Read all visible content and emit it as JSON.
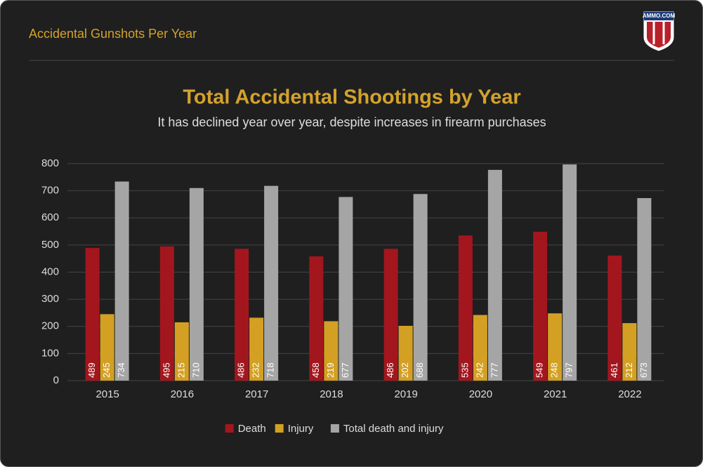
{
  "header": {
    "title": "Accidental Gunshots Per Year",
    "logo": "AMMO.COM"
  },
  "chart_data": {
    "type": "bar",
    "title": "Total Accidental Shootings by Year",
    "subtitle": "It has declined year over year, despite increases in firearm purchases",
    "categories": [
      "2015",
      "2016",
      "2017",
      "2018",
      "2019",
      "2020",
      "2021",
      "2022"
    ],
    "series": [
      {
        "name": "Death",
        "color": "#a3161e",
        "values": [
          489,
          495,
          486,
          458,
          486,
          535,
          549,
          461
        ]
      },
      {
        "name": "Injury",
        "color": "#d3a023",
        "values": [
          245,
          215,
          232,
          219,
          202,
          242,
          248,
          212
        ]
      },
      {
        "name": "Total death and injury",
        "color": "#a5a5a5",
        "values": [
          734,
          710,
          718,
          677,
          688,
          777,
          797,
          673
        ]
      }
    ],
    "ylim": [
      0,
      800
    ],
    "yticks": [
      0,
      100,
      200,
      300,
      400,
      500,
      600,
      700,
      800
    ],
    "grid": true,
    "legend": "bottom"
  }
}
